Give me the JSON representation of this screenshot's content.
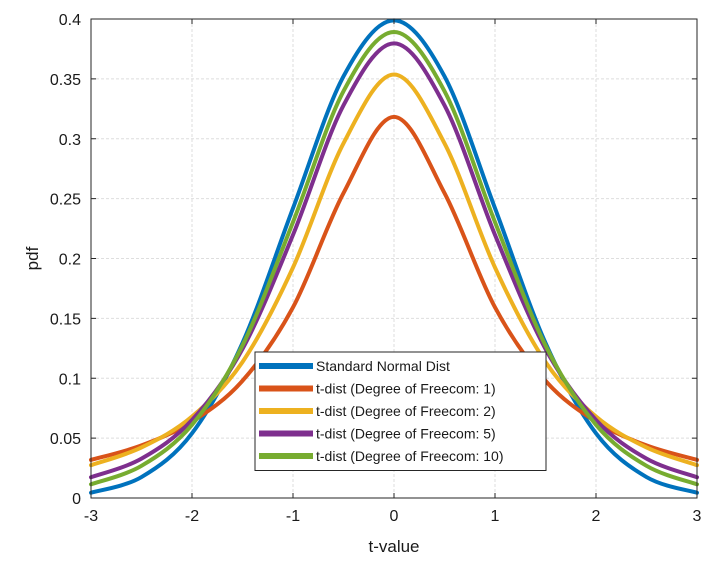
{
  "chart_data": {
    "type": "line",
    "title": "",
    "xlabel": "t-value",
    "ylabel": "pdf",
    "xlim": [
      -3,
      3
    ],
    "ylim": [
      0,
      0.4
    ],
    "xticks": [
      -3,
      -2,
      -1,
      0,
      1,
      2,
      3
    ],
    "xtick_labels": [
      "-3",
      "-2",
      "-1",
      "0",
      "1",
      "2",
      "3"
    ],
    "yticks": [
      0,
      0.05,
      0.1,
      0.15,
      0.2,
      0.25,
      0.3,
      0.35,
      0.4
    ],
    "ytick_labels": [
      "0",
      "0.05",
      "0.1",
      "0.15",
      "0.2",
      "0.25",
      "0.3",
      "0.35",
      "0.4"
    ],
    "grid": true,
    "legend_position": "bottom-center",
    "x": [
      -3,
      -2.5,
      -2,
      -1.5,
      -1,
      -0.5,
      0,
      0.5,
      1,
      1.5,
      2,
      2.5,
      3
    ],
    "series": [
      {
        "name": "Standard Normal Dist",
        "color": "#0072BD",
        "values": [
          0.0044,
          0.0175,
          0.054,
          0.1295,
          0.242,
          0.3521,
          0.3989,
          0.3521,
          0.242,
          0.1295,
          0.054,
          0.0175,
          0.0044
        ]
      },
      {
        "name": "t-dist (Degree of Freecom: 1)",
        "color": "#D95319",
        "values": [
          0.0318,
          0.0439,
          0.0637,
          0.0979,
          0.1592,
          0.2546,
          0.3183,
          0.2546,
          0.1592,
          0.0979,
          0.0637,
          0.0439,
          0.0318
        ]
      },
      {
        "name": "t-dist (Degree of Freecom: 2)",
        "color": "#EDB120",
        "values": [
          0.0274,
          0.0422,
          0.068,
          0.1136,
          0.1925,
          0.2962,
          0.3536,
          0.2962,
          0.1925,
          0.1136,
          0.068,
          0.0422,
          0.0274
        ]
      },
      {
        "name": "t-dist (Degree of Freecom: 5)",
        "color": "#7E2F8E",
        "values": [
          0.0173,
          0.0329,
          0.0651,
          0.1245,
          0.2197,
          0.3279,
          0.3796,
          0.3279,
          0.2197,
          0.1245,
          0.0651,
          0.0329,
          0.0173
        ]
      },
      {
        "name": "t-dist (Degree of Freecom: 10)",
        "color": "#77AC30",
        "values": [
          0.0114,
          0.0269,
          0.0611,
          0.1274,
          0.2304,
          0.3397,
          0.3891,
          0.3397,
          0.2304,
          0.1274,
          0.0611,
          0.0269,
          0.0114
        ]
      }
    ]
  }
}
